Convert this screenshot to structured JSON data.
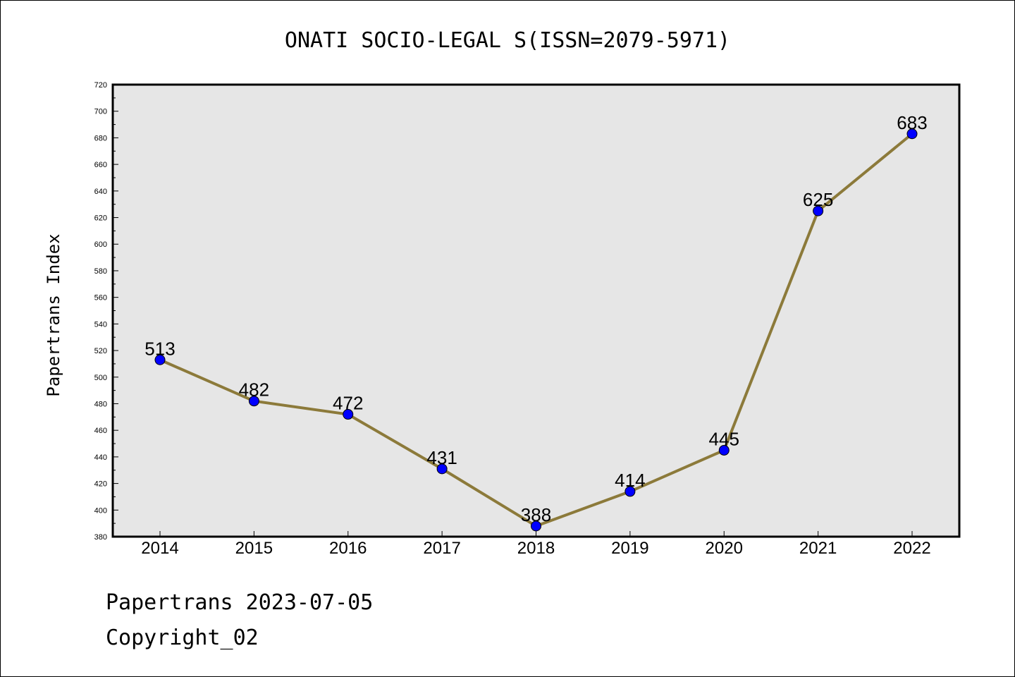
{
  "chart_data": {
    "type": "line",
    "title": "ONATI SOCIO-LEGAL S(ISSN=2079-5971)",
    "xlabel": "",
    "ylabel": "Papertrans Index",
    "categories": [
      "2014",
      "2015",
      "2016",
      "2017",
      "2018",
      "2019",
      "2020",
      "2021",
      "2022"
    ],
    "values": [
      513,
      482,
      472,
      431,
      388,
      414,
      445,
      625,
      683
    ],
    "ylim": [
      380,
      720
    ],
    "yticks": [
      380,
      400,
      420,
      440,
      460,
      480,
      500,
      520,
      540,
      560,
      580,
      600,
      620,
      640,
      660,
      680,
      700,
      720
    ],
    "grid": false,
    "data_labels": true,
    "colors": {
      "line": "#8c7a3a",
      "marker": "#0000ff",
      "plot_bg": "#e6e6e6"
    }
  },
  "footer": {
    "line1": "Papertrans 2023-07-05",
    "line2": "Copyright_02"
  }
}
